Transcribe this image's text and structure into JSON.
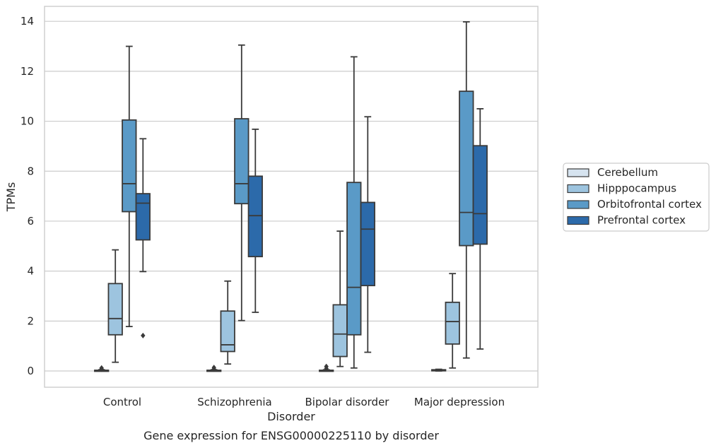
{
  "chart_data": {
    "type": "box",
    "title": "",
    "caption": "Gene expression for ENSG00000225110 by disorder",
    "xlabel": "Disorder",
    "ylabel": "TPMs",
    "ylim": [
      -0.65,
      14.6
    ],
    "yticks": [
      0,
      2,
      4,
      6,
      8,
      10,
      12,
      14
    ],
    "grid": "horizontal",
    "legend_position": "right",
    "categories": [
      "Control",
      "Schizophrenia",
      "Bipolar disorder",
      "Major depression"
    ],
    "series": [
      {
        "name": "Cerebellum",
        "color": "#d6e3ef",
        "boxes": [
          {
            "whisker_low": 0.0,
            "q1": 0.0,
            "median": 0.02,
            "q3": 0.03,
            "whisker_high": 0.05,
            "outliers": [
              0.08,
              0.12
            ]
          },
          {
            "whisker_low": 0.0,
            "q1": 0.0,
            "median": 0.02,
            "q3": 0.03,
            "whisker_high": 0.05,
            "outliers": [
              0.08,
              0.14
            ]
          },
          {
            "whisker_low": 0.0,
            "q1": 0.0,
            "median": 0.02,
            "q3": 0.03,
            "whisker_high": 0.05,
            "outliers": [
              0.1,
              0.18
            ]
          },
          {
            "whisker_low": 0.0,
            "q1": 0.01,
            "median": 0.03,
            "q3": 0.05,
            "whisker_high": 0.07,
            "outliers": []
          }
        ]
      },
      {
        "name": "Hipppocampus",
        "color": "#9dc4df",
        "boxes": [
          {
            "whisker_low": 0.35,
            "q1": 1.45,
            "median": 2.1,
            "q3": 3.5,
            "whisker_high": 4.85,
            "outliers": []
          },
          {
            "whisker_low": 0.28,
            "q1": 0.78,
            "median": 1.05,
            "q3": 2.4,
            "whisker_high": 3.6,
            "outliers": []
          },
          {
            "whisker_low": 0.18,
            "q1": 0.58,
            "median": 1.48,
            "q3": 2.65,
            "whisker_high": 5.6,
            "outliers": []
          },
          {
            "whisker_low": 0.12,
            "q1": 1.08,
            "median": 1.98,
            "q3": 2.75,
            "whisker_high": 3.9,
            "outliers": []
          }
        ]
      },
      {
        "name": "Orbitofrontal cortex",
        "color": "#5a9ac7",
        "boxes": [
          {
            "whisker_low": 1.78,
            "q1": 6.38,
            "median": 7.5,
            "q3": 10.05,
            "whisker_high": 13.0,
            "outliers": []
          },
          {
            "whisker_low": 2.02,
            "q1": 6.7,
            "median": 7.5,
            "q3": 10.1,
            "whisker_high": 13.05,
            "outliers": []
          },
          {
            "whisker_low": 0.12,
            "q1": 1.45,
            "median": 3.35,
            "q3": 7.55,
            "whisker_high": 12.58,
            "outliers": []
          },
          {
            "whisker_low": 0.52,
            "q1": 5.02,
            "median": 6.35,
            "q3": 11.2,
            "whisker_high": 13.98,
            "outliers": []
          }
        ]
      },
      {
        "name": "Prefrontal cortex",
        "color": "#2c6aaa",
        "boxes": [
          {
            "whisker_low": 3.98,
            "q1": 5.25,
            "median": 6.72,
            "q3": 7.1,
            "whisker_high": 9.3,
            "outliers": [
              1.42
            ]
          },
          {
            "whisker_low": 2.35,
            "q1": 4.58,
            "median": 6.22,
            "q3": 7.8,
            "whisker_high": 9.68,
            "outliers": []
          },
          {
            "whisker_low": 0.75,
            "q1": 3.42,
            "median": 5.68,
            "q3": 6.75,
            "whisker_high": 10.18,
            "outliers": []
          },
          {
            "whisker_low": 0.88,
            "q1": 5.08,
            "median": 6.3,
            "q3": 9.02,
            "whisker_high": 10.5,
            "outliers": []
          }
        ]
      }
    ]
  }
}
